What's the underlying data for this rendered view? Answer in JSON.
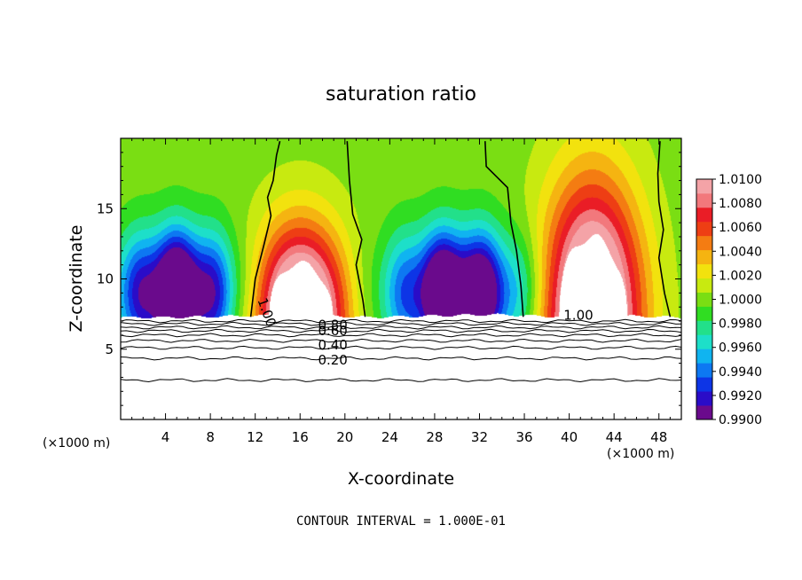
{
  "chart_data": {
    "type": "heatmap",
    "title": "saturation ratio",
    "xlabel": "X-coordinate",
    "ylabel": "Z-coordinate",
    "x_unit_left": "(×1000 m)",
    "x_unit_right": "(×1000 m)",
    "xlim": [
      0,
      50
    ],
    "ylim": [
      0,
      20
    ],
    "x_ticks": [
      "4",
      "8",
      "12",
      "16",
      "20",
      "24",
      "28",
      "32",
      "36",
      "40",
      "44",
      "48"
    ],
    "y_ticks": [
      "5",
      "10",
      "15"
    ],
    "footer": "CONTOUR INTERVAL = 1.000E-01",
    "colorbar": {
      "labels": [
        "1.0100",
        "1.0080",
        "1.0060",
        "1.0040",
        "1.0020",
        "1.0000",
        "0.9980",
        "0.9960",
        "0.9940",
        "0.9920",
        "0.9900"
      ],
      "min": 0.99,
      "max": 1.01,
      "colors": [
        "#6a0a8c",
        "#2a0cc8",
        "#0d35e6",
        "#0d78f2",
        "#10b4f0",
        "#1ddfc9",
        "#22e08a",
        "#30dd22",
        "#7ade13",
        "#c8ea10",
        "#f2e20e",
        "#f5b411",
        "#f47c12",
        "#ee3e14",
        "#ea1d26",
        "#f2787c",
        "#f4a3a7"
      ]
    },
    "contour_labels": [
      "1.00",
      "1.00",
      "0.80",
      "0.60",
      "0.40",
      "0.20"
    ],
    "terrain_height": [
      7.3,
      7.3,
      7.4,
      7.45,
      7.3,
      7.4,
      7.5,
      7.35,
      7.4,
      7.3
    ],
    "cloud_regions": [
      {
        "x_center": 16,
        "x_halfwidth": 6,
        "base_z": 7.3,
        "top_z": 12.5,
        "max_value": 1.01
      },
      {
        "x_center": 42,
        "x_halfwidth": 6.5,
        "base_z": 7.3,
        "top_z": 15.0,
        "max_value": 1.01
      }
    ],
    "dry_regions": [
      {
        "x_center": 5,
        "x_halfwidth": 6,
        "min_value": 0.99
      },
      {
        "x_center": 30,
        "x_halfwidth": 7,
        "min_value": 0.99
      }
    ],
    "isoline_1_00": [
      [
        [
          11.6,
          7.3
        ],
        [
          12.0,
          10.0
        ],
        [
          12.8,
          12.5
        ],
        [
          13.4,
          14.5
        ],
        [
          13.1,
          15.8
        ],
        [
          13.6,
          17.0
        ],
        [
          13.9,
          18.8
        ],
        [
          14.2,
          19.8
        ]
      ],
      [
        [
          21.8,
          7.3
        ],
        [
          21.6,
          8.5
        ],
        [
          21.0,
          11.0
        ],
        [
          21.5,
          12.8
        ],
        [
          20.7,
          14.6
        ],
        [
          20.4,
          17.0
        ],
        [
          20.2,
          19.8
        ]
      ],
      [
        [
          35.9,
          7.3
        ],
        [
          35.7,
          9.5
        ],
        [
          35.3,
          12.0
        ],
        [
          34.8,
          14.0
        ],
        [
          34.5,
          16.5
        ],
        [
          32.6,
          18.0
        ],
        [
          32.5,
          19.8
        ]
      ],
      [
        [
          49.0,
          7.3
        ],
        [
          48.5,
          9.0
        ],
        [
          48.0,
          11.5
        ],
        [
          48.4,
          13.5
        ],
        [
          48.0,
          15.5
        ],
        [
          47.9,
          17.5
        ],
        [
          48.1,
          19.8
        ]
      ]
    ],
    "isolines_lower_z": [
      7.0,
      6.8,
      6.55,
      6.3,
      6.0,
      5.6,
      5.1,
      4.35,
      2.8
    ]
  }
}
